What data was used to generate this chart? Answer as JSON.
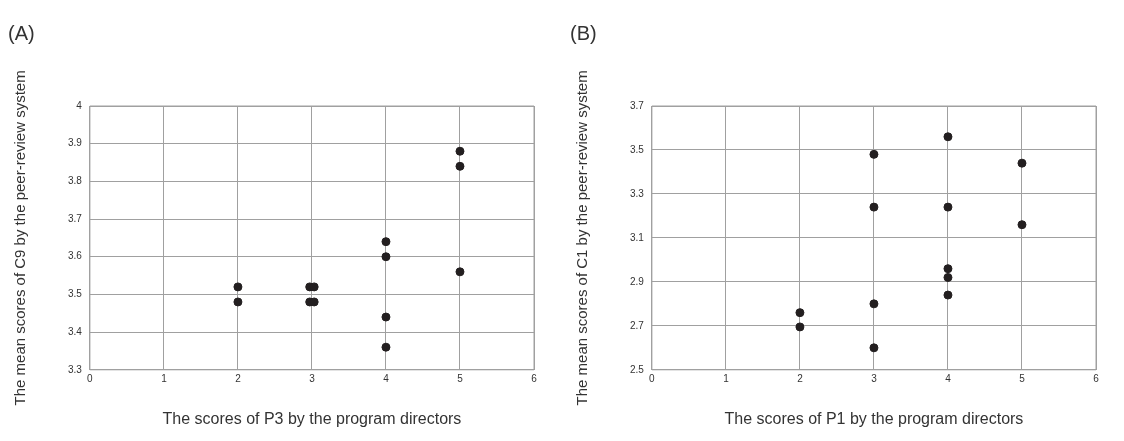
{
  "chart_data": [
    {
      "type": "scatter",
      "title": "(A)",
      "xlabel": "The scores of P3 by the program directors",
      "ylabel": "The mean scores of C9 by the peer-review system",
      "xlim": [
        0,
        6
      ],
      "xticks": [
        0,
        1,
        2,
        3,
        4,
        5,
        6
      ],
      "ylim": [
        3.3,
        4
      ],
      "yticks": [
        3.3,
        3.4,
        3.5,
        3.6,
        3.7,
        3.8,
        3.9,
        4
      ],
      "grid": true,
      "marker": "circle",
      "series": [
        {
          "color": "#231f20",
          "x": [
            2,
            2,
            2.97,
            3.03,
            2.97,
            3.03,
            4,
            4,
            4,
            4,
            5,
            5,
            5
          ],
          "values": [
            3.52,
            3.48,
            3.52,
            3.52,
            3.48,
            3.48,
            3.64,
            3.6,
            3.44,
            3.36,
            3.88,
            3.84,
            3.56
          ]
        }
      ]
    },
    {
      "type": "scatter",
      "title": "(B)",
      "xlabel": "The scores of P1 by the program directors",
      "ylabel": "The mean scores of C1 by the peer-review system",
      "xlim": [
        0,
        6
      ],
      "xticks": [
        0,
        1,
        2,
        3,
        4,
        5,
        6
      ],
      "ylim": [
        2.5,
        3.7
      ],
      "yticks": [
        2.5,
        2.7,
        2.9,
        3.1,
        3.3,
        3.5,
        3.7
      ],
      "grid": true,
      "marker": "circle",
      "series": [
        {
          "color": "#231f20",
          "x": [
            2,
            2,
            3,
            3,
            3,
            3,
            4,
            4,
            4,
            4,
            4,
            5,
            5
          ],
          "values": [
            2.76,
            2.695,
            3.48,
            3.24,
            2.8,
            2.6,
            3.56,
            3.24,
            2.96,
            2.92,
            2.84,
            3.44,
            3.16
          ]
        }
      ]
    }
  ]
}
